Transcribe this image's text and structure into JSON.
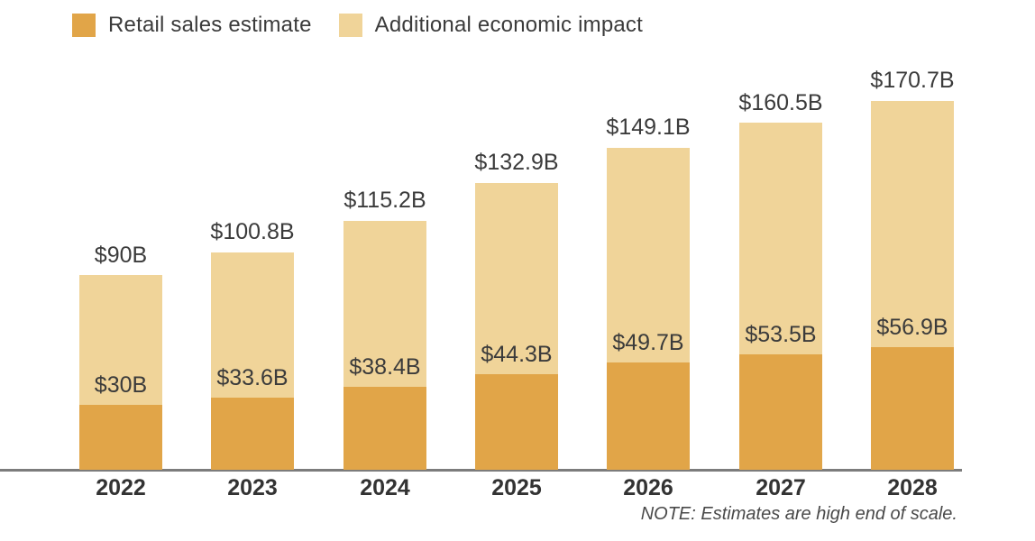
{
  "legend": {
    "items": [
      {
        "label": "Retail sales estimate",
        "color": "#E1A548"
      },
      {
        "label": "Additional economic impact",
        "color": "#F0D499"
      }
    ]
  },
  "note": "NOTE: Estimates are high end of scale.",
  "colors": {
    "retail_segment": "#E1A548",
    "additional_segment": "#F0D499",
    "label_text": "#3b3b3b",
    "year_text": "#333333",
    "axis_line": "#7c7c7c",
    "background": "#ffffff"
  },
  "chart_data": {
    "type": "bar",
    "stacked": true,
    "title": "",
    "xlabel": "",
    "ylabel": "",
    "legend_position": "top-left",
    "grid": false,
    "y_axis_visible": false,
    "categories": [
      "2022",
      "2023",
      "2024",
      "2025",
      "2026",
      "2027",
      "2028"
    ],
    "series": [
      {
        "name": "Retail sales estimate",
        "color": "#E1A548",
        "values": [
          30,
          33.6,
          38.4,
          44.3,
          49.7,
          53.5,
          56.9
        ],
        "value_labels": [
          "$30B",
          "$33.6B",
          "$38.4B",
          "$44.3B",
          "$49.7B",
          "$53.5B",
          "$56.9B"
        ]
      },
      {
        "name": "Additional economic impact",
        "color": "#F0D499",
        "values": [
          60,
          67.2,
          76.8,
          88.6,
          99.4,
          107,
          113.8
        ]
      }
    ],
    "totals": [
      90,
      100.8,
      115.2,
      132.9,
      149.1,
      160.5,
      170.7
    ],
    "total_labels": [
      "$90B",
      "$100.8B",
      "$115.2B",
      "$132.9B",
      "$149.1B",
      "$160.5B",
      "$170.7B"
    ],
    "ylim": [
      0,
      170.7
    ]
  }
}
